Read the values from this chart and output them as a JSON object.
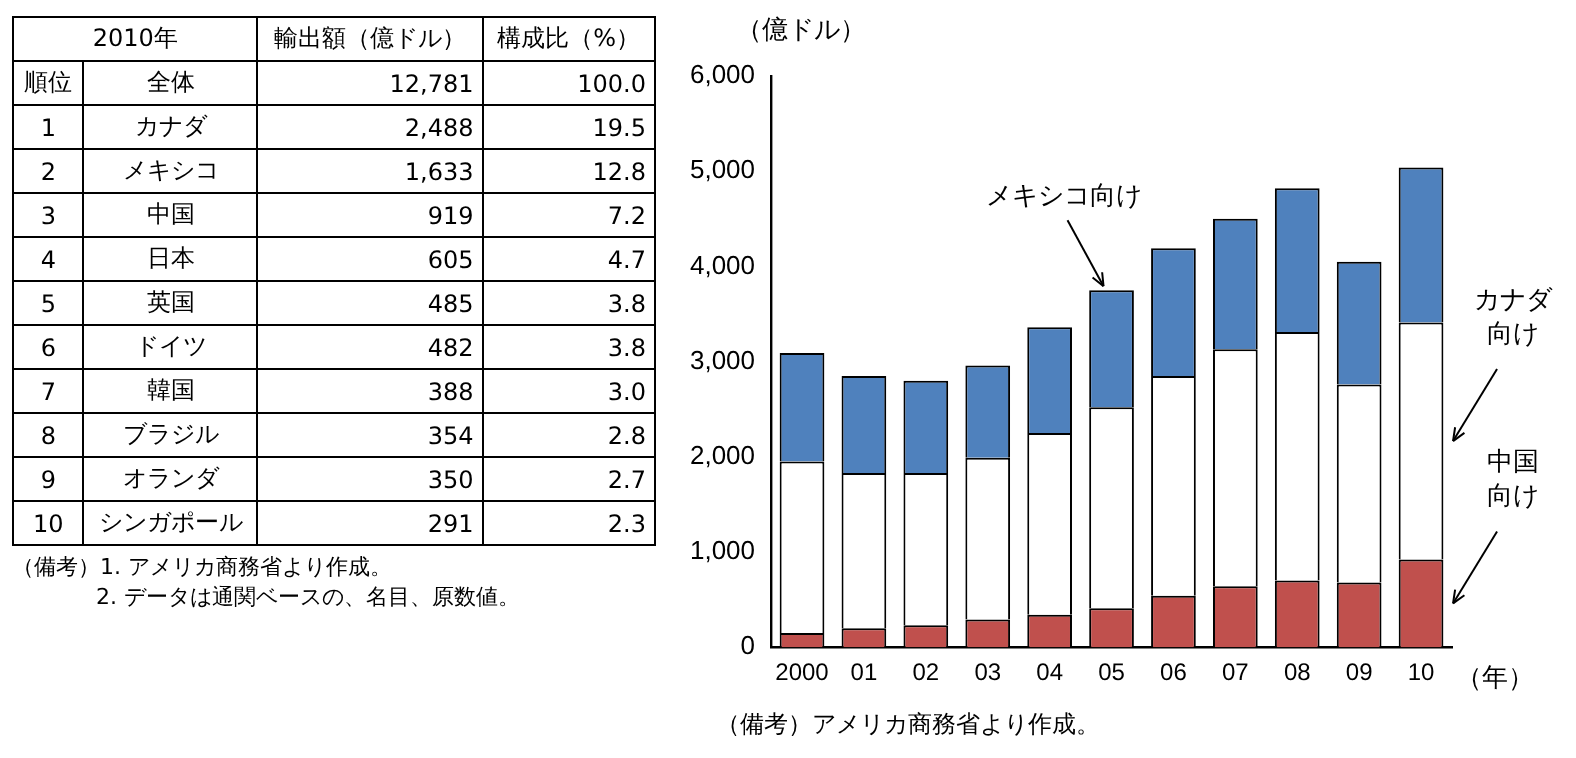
{
  "chart_data": [
    {
      "type": "other",
      "title": "2010年",
      "categories": [
        "全体",
        "カナダ",
        "メキシコ",
        "中国",
        "日本",
        "英国",
        "ドイツ",
        "韓国",
        "ブラジル",
        "オランダ",
        "シンガポール"
      ],
      "series": [
        {
          "name": "順位",
          "values": [
            null,
            1,
            2,
            3,
            4,
            5,
            6,
            7,
            8,
            9,
            10
          ],
          "value_labels": [
            null,
            "1",
            "2",
            "3",
            "4",
            "5",
            "6",
            "7",
            "8",
            "9",
            "10"
          ]
        },
        {
          "name": "輸出額（億ドル）",
          "values": [
            12781,
            2488,
            1633,
            919,
            605,
            485,
            482,
            388,
            354,
            350,
            291
          ],
          "value_labels": [
            "12,781",
            "2,488",
            "1,633",
            "919",
            "605",
            "485",
            "482",
            "388",
            "354",
            "350",
            "291"
          ]
        },
        {
          "name": "構成比（%）",
          "values": [
            100.0,
            19.5,
            12.8,
            7.2,
            4.7,
            3.8,
            3.8,
            3.0,
            2.8,
            2.7,
            2.3
          ],
          "value_labels": [
            "100.0",
            "19.5",
            "12.8",
            "7.2",
            "4.7",
            "3.8",
            "3.8",
            "3.0",
            "2.8",
            "2.7",
            "2.3"
          ]
        }
      ],
      "annotations": [
        "（備考）1. アメリカ商務省より作成。",
        "2. データは通関ベースの、名目、原数値。"
      ]
    },
    {
      "type": "bar",
      "stacked": true,
      "ylabel": "（億ドル）",
      "xlabel": "（年）",
      "categories": [
        "2000",
        "01",
        "02",
        "03",
        "04",
        "05",
        "06",
        "07",
        "08",
        "09",
        "10"
      ],
      "series": [
        {
          "name": "中国向け",
          "color": "#c0504d",
          "values": [
            150,
            200,
            230,
            290,
            340,
            410,
            540,
            640,
            700,
            680,
            920
          ]
        },
        {
          "name": "カナダ向け",
          "color": "#ffffff",
          "values": [
            1800,
            1630,
            1600,
            1700,
            1910,
            2110,
            2310,
            2490,
            2610,
            2080,
            2490
          ]
        },
        {
          "name": "メキシコ向け",
          "color": "#4f81bd",
          "values": [
            1140,
            1020,
            970,
            970,
            1110,
            1230,
            1340,
            1370,
            1510,
            1290,
            1630
          ]
        }
      ],
      "ylim": [
        0,
        6000
      ],
      "yticks": [
        {
          "value": 0,
          "label": "0"
        },
        {
          "value": 1000,
          "label": "1,000"
        },
        {
          "value": 2000,
          "label": "2,000"
        },
        {
          "value": 3000,
          "label": "3,000"
        },
        {
          "value": 4000,
          "label": "4,000"
        },
        {
          "value": 5000,
          "label": "5,000"
        },
        {
          "value": 6000,
          "label": "6,000"
        }
      ],
      "grid": false,
      "legend": false,
      "annotations": [
        "（備考）アメリカ商務省より作成。"
      ]
    }
  ]
}
